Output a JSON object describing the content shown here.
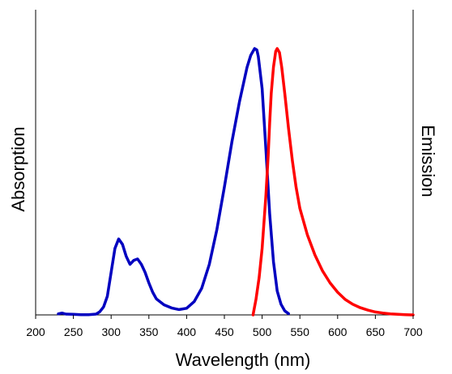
{
  "chart_data": {
    "type": "line",
    "title": "",
    "xlabel": "Wavelength (nm)",
    "ylabel_left": "Absorption",
    "ylabel_right": "Emission",
    "xlim": [
      200,
      700
    ],
    "xticks": [
      200,
      250,
      300,
      350,
      400,
      450,
      500,
      550,
      600,
      650,
      700
    ],
    "ylim": [
      0,
      1
    ],
    "grid": false,
    "legend": "none",
    "series": [
      {
        "color": "#0000c0",
        "x": [
          230,
          235,
          240,
          250,
          260,
          270,
          280,
          285,
          290,
          295,
          300,
          305,
          310,
          315,
          320,
          325,
          330,
          335,
          340,
          345,
          350,
          355,
          360,
          370,
          380,
          390,
          400,
          410,
          420,
          430,
          440,
          450,
          460,
          470,
          480,
          485,
          490,
          493,
          495,
          500,
          505,
          510,
          515,
          520,
          525,
          530,
          535
        ],
        "y": [
          0.004,
          0.007,
          0.003,
          0.002,
          0.001,
          0.001,
          0.003,
          0.012,
          0.03,
          0.07,
          0.16,
          0.25,
          0.285,
          0.265,
          0.22,
          0.19,
          0.205,
          0.21,
          0.19,
          0.16,
          0.12,
          0.085,
          0.06,
          0.038,
          0.026,
          0.02,
          0.025,
          0.05,
          0.1,
          0.19,
          0.32,
          0.48,
          0.65,
          0.8,
          0.93,
          0.975,
          1.0,
          0.995,
          0.97,
          0.85,
          0.62,
          0.38,
          0.2,
          0.09,
          0.04,
          0.015,
          0.005
        ]
      },
      {
        "color": "#ff0000",
        "x": [
          488,
          492,
          496,
          500,
          505,
          508,
          510,
          512,
          515,
          518,
          520,
          523,
          526,
          530,
          535,
          540,
          545,
          550,
          560,
          570,
          580,
          590,
          600,
          610,
          620,
          630,
          640,
          650,
          660,
          670,
          680,
          690,
          700
        ],
        "y": [
          0.0,
          0.06,
          0.14,
          0.25,
          0.45,
          0.6,
          0.72,
          0.83,
          0.93,
          0.99,
          1.0,
          0.985,
          0.93,
          0.83,
          0.7,
          0.58,
          0.48,
          0.4,
          0.3,
          0.225,
          0.165,
          0.12,
          0.085,
          0.058,
          0.04,
          0.027,
          0.018,
          0.011,
          0.007,
          0.004,
          0.002,
          0.001,
          0.0
        ]
      }
    ]
  }
}
